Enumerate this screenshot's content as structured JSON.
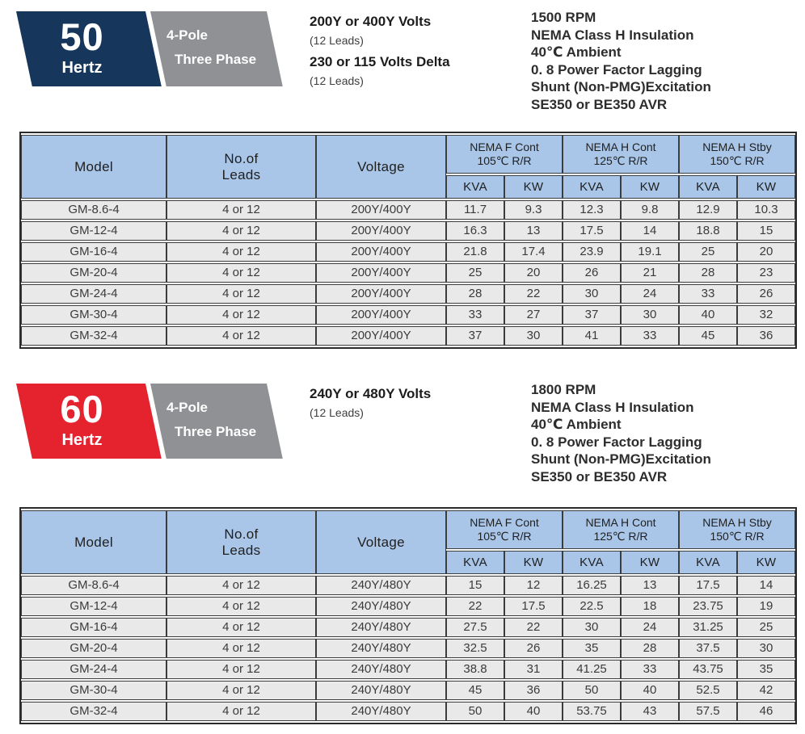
{
  "colors": {
    "navy": "#16365c",
    "red": "#e4232e",
    "badge_gray": "#8f9194",
    "header_blue": "#a9c6e8",
    "row_gray": "#e9e9e9",
    "border_dark": "#2d2d2d"
  },
  "sections": [
    {
      "frequency": "50",
      "frequency_unit": "Hertz",
      "pole_label": "4-Pole",
      "phase_label": "Three Phase",
      "voltage_block": [
        {
          "title": "200Y or 400Y Volts",
          "note": "(12 Leads)"
        },
        {
          "title": "230 or 115 Volts Delta",
          "note": "(12 Leads)"
        }
      ],
      "spec_lines": [
        "1500 RPM",
        "NEMA Class H Insulation",
        "40℃ Ambient",
        "0. 8 Power Factor Lagging",
        "Shunt (Non-PMG)Excitation",
        "SE350 or BE350 AVR"
      ],
      "table": {
        "headers": {
          "model": "Model",
          "leads": "No.of\nLeads",
          "voltage": "Voltage",
          "groups": [
            "NEMA F Cont\n105℃ R/R",
            "NEMA H Cont\n125℃ R/R",
            "NEMA H Stby\n150℃ R/R"
          ],
          "kva": "KVA",
          "kw": "KW"
        },
        "rows": [
          {
            "model": "GM-8.6-4",
            "leads": "4 or 12",
            "voltage": "200Y/400Y",
            "values": [
              "11.7",
              "9.3",
              "12.3",
              "9.8",
              "12.9",
              "10.3"
            ]
          },
          {
            "model": "GM-12-4",
            "leads": "4 or 12",
            "voltage": "200Y/400Y",
            "values": [
              "16.3",
              "13",
              "17.5",
              "14",
              "18.8",
              "15"
            ]
          },
          {
            "model": "GM-16-4",
            "leads": "4 or 12",
            "voltage": "200Y/400Y",
            "values": [
              "21.8",
              "17.4",
              "23.9",
              "19.1",
              "25",
              "20"
            ]
          },
          {
            "model": "GM-20-4",
            "leads": "4 or 12",
            "voltage": "200Y/400Y",
            "values": [
              "25",
              "20",
              "26",
              "21",
              "28",
              "23"
            ]
          },
          {
            "model": "GM-24-4",
            "leads": "4 or 12",
            "voltage": "200Y/400Y",
            "values": [
              "28",
              "22",
              "30",
              "24",
              "33",
              "26"
            ]
          },
          {
            "model": "GM-30-4",
            "leads": "4 or 12",
            "voltage": "200Y/400Y",
            "values": [
              "33",
              "27",
              "37",
              "30",
              "40",
              "32"
            ]
          },
          {
            "model": "GM-32-4",
            "leads": "4 or 12",
            "voltage": "200Y/400Y",
            "values": [
              "37",
              "30",
              "41",
              "33",
              "45",
              "36"
            ]
          }
        ]
      }
    },
    {
      "frequency": "60",
      "frequency_unit": "Hertz",
      "pole_label": "4-Pole",
      "phase_label": "Three Phase",
      "voltage_block": [
        {
          "title": "240Y or 480Y Volts",
          "note": "(12 Leads)"
        }
      ],
      "spec_lines": [
        "1800 RPM",
        "NEMA Class H Insulation",
        "40℃ Ambient",
        "0. 8 Power Factor Lagging",
        "Shunt (Non-PMG)Excitation",
        "SE350 or BE350 AVR"
      ],
      "table": {
        "headers": {
          "model": "Model",
          "leads": "No.of\nLeads",
          "voltage": "Voltage",
          "groups": [
            "NEMA F Cont\n105℃ R/R",
            "NEMA H Cont\n125℃ R/R",
            "NEMA H Stby\n150℃ R/R"
          ],
          "kva": "KVA",
          "kw": "KW"
        },
        "rows": [
          {
            "model": "GM-8.6-4",
            "leads": "4 or 12",
            "voltage": "240Y/480Y",
            "values": [
              "15",
              "12",
              "16.25",
              "13",
              "17.5",
              "14"
            ]
          },
          {
            "model": "GM-12-4",
            "leads": "4 or 12",
            "voltage": "240Y/480Y",
            "values": [
              "22",
              "17.5",
              "22.5",
              "18",
              "23.75",
              "19"
            ]
          },
          {
            "model": "GM-16-4",
            "leads": "4 or 12",
            "voltage": "240Y/480Y",
            "values": [
              "27.5",
              "22",
              "30",
              "24",
              "31.25",
              "25"
            ]
          },
          {
            "model": "GM-20-4",
            "leads": "4 or 12",
            "voltage": "240Y/480Y",
            "values": [
              "32.5",
              "26",
              "35",
              "28",
              "37.5",
              "30"
            ]
          },
          {
            "model": "GM-24-4",
            "leads": "4 or 12",
            "voltage": "240Y/480Y",
            "values": [
              "38.8",
              "31",
              "41.25",
              "33",
              "43.75",
              "35"
            ]
          },
          {
            "model": "GM-30-4",
            "leads": "4 or 12",
            "voltage": "240Y/480Y",
            "values": [
              "45",
              "36",
              "50",
              "40",
              "52.5",
              "42"
            ]
          },
          {
            "model": "GM-32-4",
            "leads": "4 or 12",
            "voltage": "240Y/480Y",
            "values": [
              "50",
              "40",
              "53.75",
              "43",
              "57.5",
              "46"
            ]
          }
        ]
      }
    }
  ]
}
